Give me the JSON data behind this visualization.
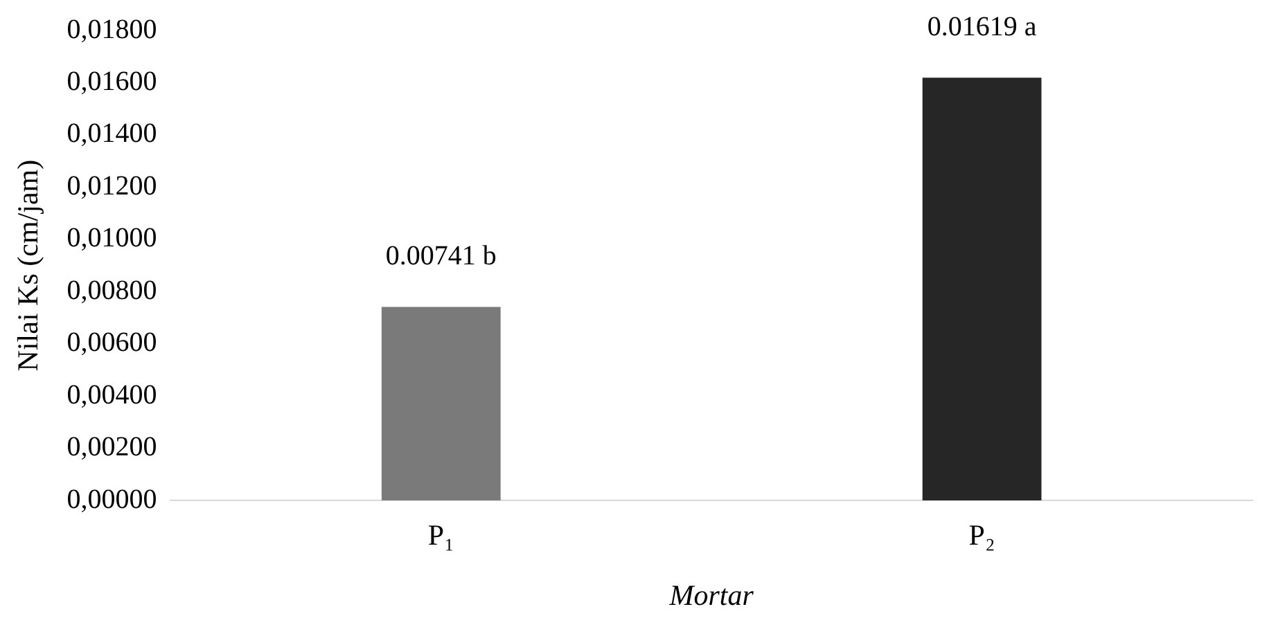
{
  "chart_data": {
    "type": "bar",
    "ylabel": "Nilai Ks (cm/jam)",
    "xlabel": "Mortar",
    "categories": [
      "P₁",
      "P₂"
    ],
    "values": [
      0.00741,
      0.01619
    ],
    "colors": [
      "#7a7a7a",
      "#262626"
    ],
    "value_labels": [
      "0.00741 b",
      "0.01619 a"
    ],
    "ylim": [
      0,
      0.018
    ],
    "yticks": [
      {
        "value": 0,
        "label": "0,00000"
      },
      {
        "value": 0.002,
        "label": "0,00200"
      },
      {
        "value": 0.004,
        "label": "0,00400"
      },
      {
        "value": 0.006,
        "label": "0,00600"
      },
      {
        "value": 0.008,
        "label": "0,00800"
      },
      {
        "value": 0.01,
        "label": "0,01000"
      },
      {
        "value": 0.012,
        "label": "0,01200"
      },
      {
        "value": 0.014,
        "label": "0,01400"
      },
      {
        "value": 0.016,
        "label": "0,01600"
      },
      {
        "value": 0.018,
        "label": "0,01800"
      }
    ],
    "grid": false,
    "legend": false
  }
}
